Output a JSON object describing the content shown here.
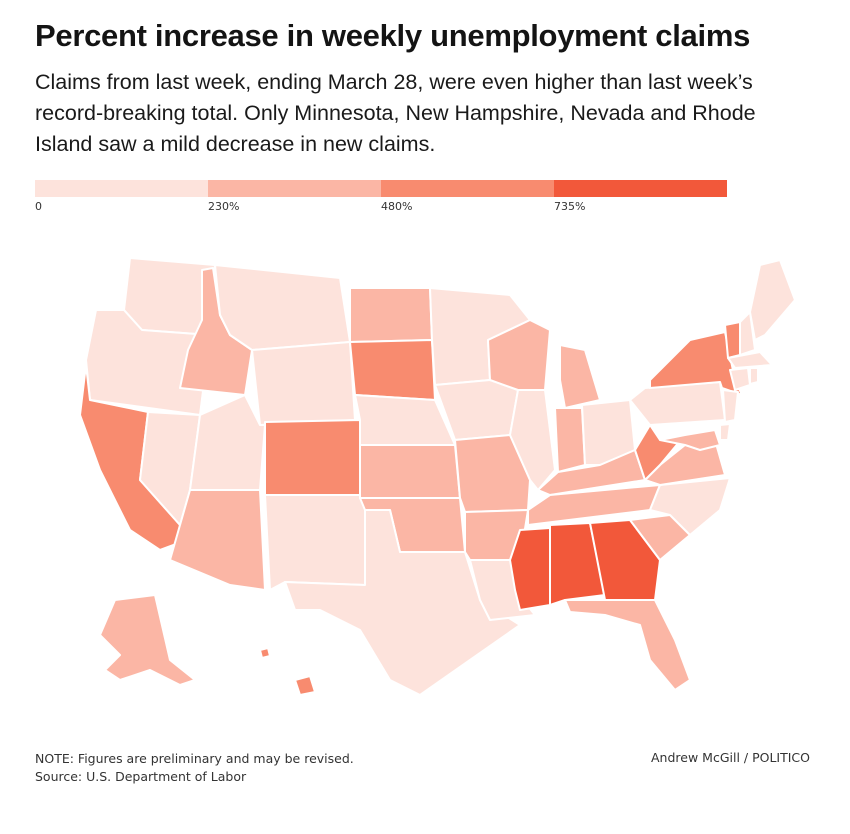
{
  "header": {
    "title": "Percent increase in weekly unemployment claims",
    "subtitle": "Claims from last week, ending March 28, were even higher than last week’s record-breaking total. Only Minnesota, New Hampshire, Nevada and Rhode Island saw a mild decrease in new claims."
  },
  "legend": {
    "bins": [
      {
        "label": "0",
        "color": "#fde3dc"
      },
      {
        "label": "230%",
        "color": "#fbb6a5"
      },
      {
        "label": "480%",
        "color": "#f88b6f"
      },
      {
        "label": "735%",
        "color": "#f2583a"
      }
    ]
  },
  "map_data": {
    "type": "choropleth",
    "region": "United States",
    "bins": [
      "0",
      "230%",
      "480%",
      "735%"
    ],
    "states": {
      "WA": 0,
      "OR": 0,
      "CA": 2,
      "NV": 0,
      "ID": 1,
      "MT": 0,
      "WY": 0,
      "UT": 0,
      "AZ": 1,
      "CO": 2,
      "NM": 0,
      "ND": 1,
      "SD": 2,
      "NE": 0,
      "KS": 1,
      "OK": 1,
      "TX": 0,
      "MN": 0,
      "IA": 0,
      "MO": 1,
      "AR": 1,
      "LA": 0,
      "WI": 1,
      "IL": 0,
      "MI": 1,
      "IN": 1,
      "OH": 0,
      "KY": 1,
      "TN": 1,
      "MS": 3,
      "AL": 3,
      "GA": 3,
      "FL": 1,
      "SC": 1,
      "NC": 0,
      "VA": 1,
      "WV": 2,
      "PA": 0,
      "NY": 2,
      "VT": 2,
      "NH": 0,
      "ME": 0,
      "MA": 0,
      "CT": 0,
      "RI": 0,
      "NJ": 0,
      "MD": 1,
      "DE": 0,
      "AK": 1,
      "HI": 2
    }
  },
  "footer": {
    "note": "NOTE: Figures are preliminary and may be revised.",
    "source": "Source: U.S. Department of Labor",
    "credit": "Andrew McGill / POLITICO"
  }
}
